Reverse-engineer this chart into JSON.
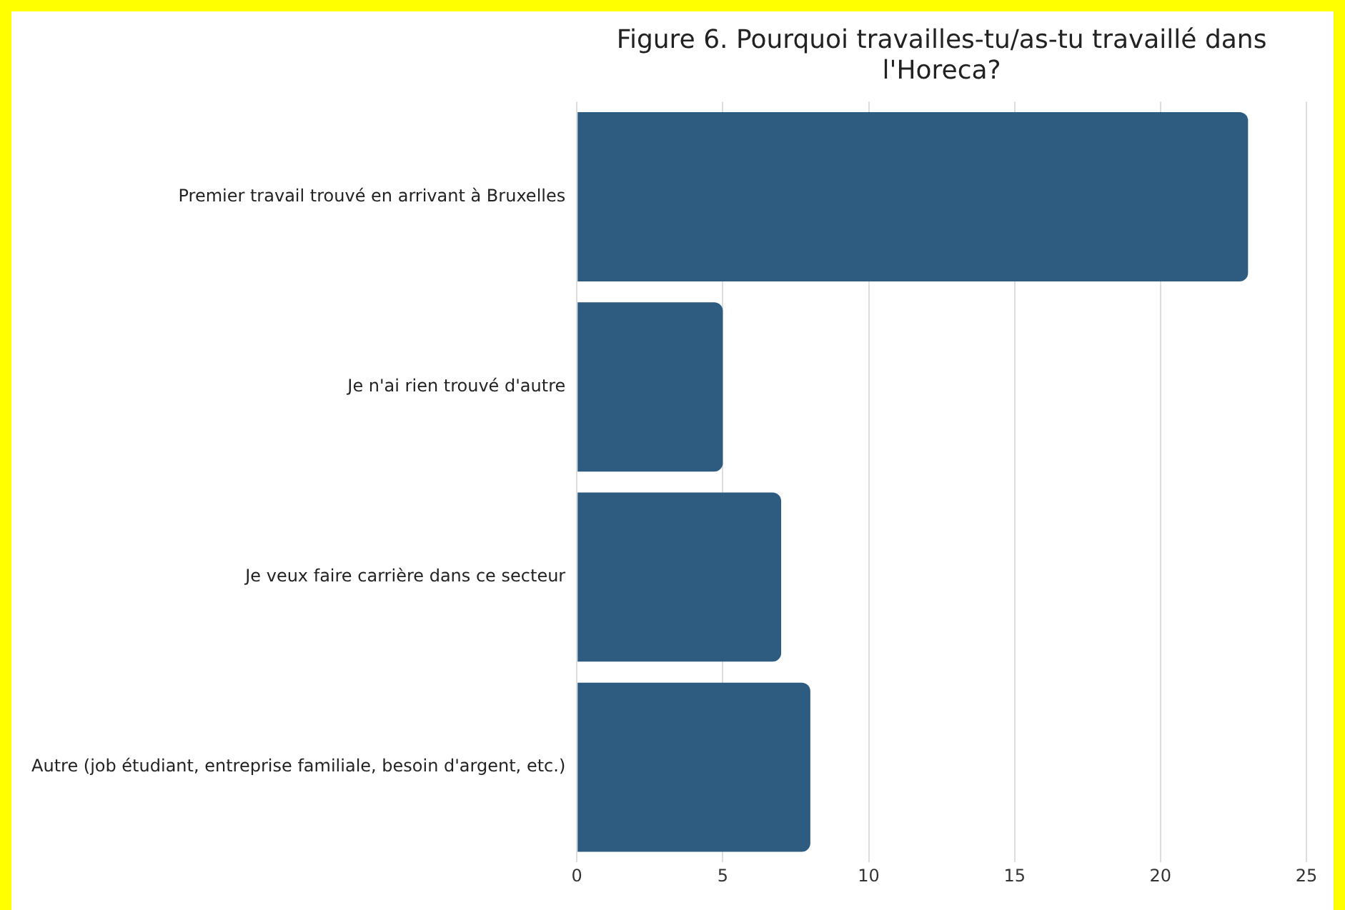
{
  "chart_data": {
    "type": "bar",
    "orientation": "horizontal",
    "title": "Figure 6. Pourquoi travailles-tu/as-tu travaillé dans l'Horeca?",
    "categories": [
      "Premier travail trouvé en arrivant à Bruxelles",
      "Je n'ai rien trouvé d'autre",
      "Je veux faire carrière dans ce secteur",
      "Autre (job étudiant, entreprise familiale, besoin d'argent, etc.)"
    ],
    "values": [
      23,
      5,
      7,
      8
    ],
    "color": "#2e5b80",
    "xlim": [
      0,
      25
    ],
    "xticks": [
      0,
      5,
      10,
      15,
      20,
      25
    ],
    "grid": "x",
    "legend": false
  }
}
